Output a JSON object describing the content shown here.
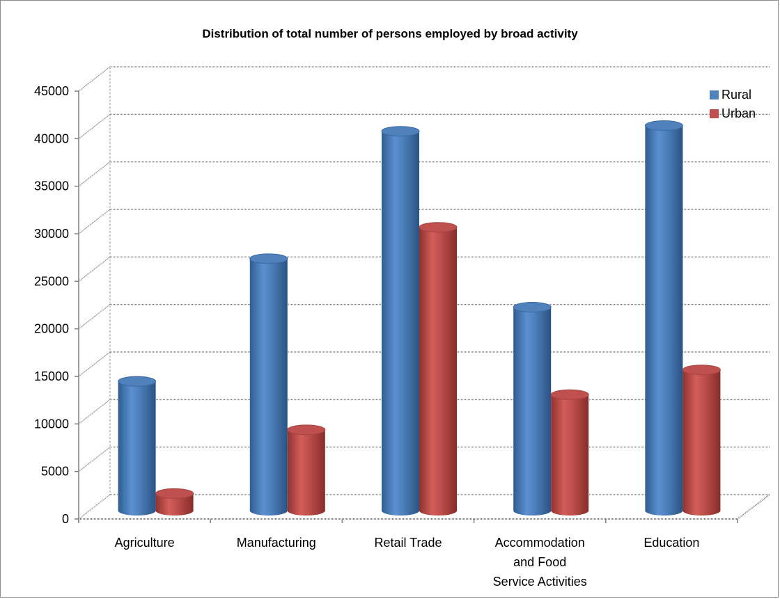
{
  "chart_data": {
    "type": "bar",
    "title": "Distribution of total number of persons employed by broad activity",
    "xlabel": "",
    "ylabel": "",
    "ylim": [
      0,
      45000
    ],
    "ytick_step": 5000,
    "ytick_labels": [
      "0",
      "5000",
      "10000",
      "15000",
      "20000",
      "25000",
      "30000",
      "35000",
      "40000",
      "45000"
    ],
    "grid": true,
    "style": "3d-cylinder",
    "legend_position": "top-right",
    "categories": [
      [
        "Agriculture"
      ],
      [
        "Manufacturing"
      ],
      [
        "Retail Trade"
      ],
      [
        "Accommodation",
        "and Food",
        "Service Activities"
      ],
      [
        "Education"
      ]
    ],
    "series": [
      {
        "name": "Rural",
        "color": "#4f81bd",
        "values": [
          13600,
          26500,
          39900,
          21400,
          40500
        ]
      },
      {
        "name": "Urban",
        "color": "#c0504d",
        "values": [
          1800,
          8500,
          29800,
          12200,
          14800
        ]
      }
    ]
  }
}
